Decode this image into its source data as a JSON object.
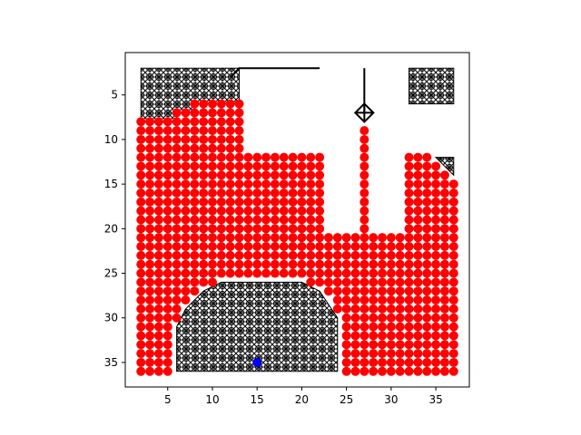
{
  "chart_data": {
    "type": "scatter",
    "xlim": [
      0.25,
      38.75
    ],
    "ylim": [
      37.75,
      0.25
    ],
    "xticks": [
      5,
      10,
      15,
      20,
      25,
      30,
      35
    ],
    "yticks": [
      5,
      10,
      15,
      20,
      25,
      30,
      35
    ],
    "series": [
      {
        "color": "#ff0000",
        "rows": [
          [
            6,
            8,
            13
          ],
          [
            7,
            6,
            13
          ],
          [
            8,
            2,
            13
          ],
          [
            9,
            2,
            13
          ],
          [
            10,
            2,
            13
          ],
          [
            11,
            2,
            13
          ],
          [
            9,
            27,
            27
          ],
          [
            10,
            27,
            27
          ],
          [
            11,
            27,
            27
          ],
          [
            12,
            2,
            22
          ],
          [
            12,
            27,
            27
          ],
          [
            12,
            32,
            34
          ],
          [
            13,
            2,
            22
          ],
          [
            13,
            27,
            27
          ],
          [
            13,
            32,
            35
          ],
          [
            14,
            2,
            22
          ],
          [
            14,
            27,
            27
          ],
          [
            14,
            32,
            36
          ],
          [
            15,
            2,
            22
          ],
          [
            15,
            27,
            27
          ],
          [
            15,
            32,
            37
          ],
          [
            16,
            2,
            22
          ],
          [
            16,
            27,
            27
          ],
          [
            16,
            32,
            37
          ],
          [
            17,
            2,
            22
          ],
          [
            17,
            27,
            27
          ],
          [
            17,
            32,
            37
          ],
          [
            18,
            2,
            22
          ],
          [
            18,
            27,
            27
          ],
          [
            18,
            32,
            37
          ],
          [
            19,
            2,
            22
          ],
          [
            19,
            27,
            27
          ],
          [
            19,
            32,
            37
          ],
          [
            20,
            2,
            22
          ],
          [
            20,
            27,
            27
          ],
          [
            20,
            32,
            37
          ],
          [
            21,
            2,
            37
          ],
          [
            22,
            2,
            37
          ],
          [
            23,
            2,
            37
          ],
          [
            24,
            2,
            37
          ],
          [
            25,
            2,
            37
          ],
          [
            26,
            2,
            10
          ],
          [
            26,
            21,
            37
          ],
          [
            27,
            2,
            8
          ],
          [
            27,
            23,
            37
          ],
          [
            28,
            2,
            7
          ],
          [
            28,
            24,
            37
          ],
          [
            29,
            2,
            6
          ],
          [
            29,
            24,
            37
          ],
          [
            30,
            2,
            6
          ],
          [
            30,
            25,
            37
          ],
          [
            31,
            2,
            5
          ],
          [
            31,
            25,
            37
          ],
          [
            32,
            2,
            5
          ],
          [
            32,
            25,
            37
          ],
          [
            33,
            2,
            5
          ],
          [
            33,
            25,
            37
          ],
          [
            34,
            2,
            5
          ],
          [
            34,
            25,
            37
          ],
          [
            35,
            2,
            5
          ],
          [
            35,
            25,
            37
          ],
          [
            36,
            2,
            5
          ],
          [
            36,
            25,
            37
          ]
        ]
      }
    ],
    "obstacles": [
      [
        [
          2,
          2
        ],
        [
          13,
          2
        ],
        [
          13,
          6
        ],
        [
          8,
          6
        ],
        [
          8,
          7
        ],
        [
          6,
          7
        ],
        [
          6,
          8
        ],
        [
          2,
          8
        ]
      ],
      [
        [
          32,
          2
        ],
        [
          37,
          2
        ],
        [
          37,
          6
        ],
        [
          32,
          6
        ]
      ],
      [
        [
          35,
          12
        ],
        [
          37,
          12
        ],
        [
          37,
          14
        ]
      ],
      [
        [
          6,
          36
        ],
        [
          6,
          31
        ],
        [
          7,
          29
        ],
        [
          9,
          27
        ],
        [
          11,
          26
        ],
        [
          20,
          26
        ],
        [
          22,
          27
        ],
        [
          24,
          30
        ],
        [
          24,
          36
        ]
      ]
    ],
    "lines": [
      [
        [
          12,
          3
        ],
        [
          13,
          2
        ],
        [
          22,
          2
        ]
      ],
      [
        [
          27,
          2
        ],
        [
          27,
          7
        ]
      ]
    ],
    "start": {
      "x": 27,
      "y": 7
    },
    "goal": {
      "x": 15,
      "y": 35,
      "color": "#0000ff"
    }
  }
}
